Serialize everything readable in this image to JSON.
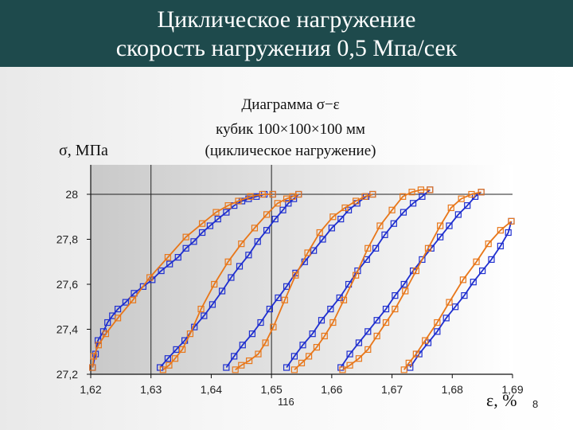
{
  "slide": {
    "title_line_1": "Циклическое нагружение",
    "title_line_2": "скорость нагружения  0,5 Мпа/сек",
    "colors": {
      "title_bar": "#1e4a4c",
      "title_text": "#ffffff"
    },
    "note": "116",
    "page_number": "8"
  },
  "chart_data": {
    "type": "line",
    "title_lines": [
      "Диаграмма σ−ε",
      "кубик 100×100×100 мм",
      "(циклическое нагружение)"
    ],
    "ylabel": "σ, МПа",
    "xlabel": "ε, %",
    "xlim": [
      1.62,
      1.69
    ],
    "ylim": [
      27.2,
      28.0
    ],
    "x_ticks": [
      "1,62",
      "1,63",
      "1,64",
      "1,65",
      "1,66",
      "1,67",
      "1,68",
      "1,69"
    ],
    "y_ticks": [
      "27,2",
      "27,4",
      "27,6",
      "27,8",
      "28"
    ],
    "grid": "reference lines at x=1,63 and x=1,65 and y=28",
    "legend": "none",
    "colors": {
      "loading": "#1f2fcf",
      "unloading": "#e8771a",
      "marker": "square-open"
    },
    "series": [
      {
        "color": "#1f2fcf",
        "points": [
          [
            1.6203,
            27.23
          ],
          [
            1.6208,
            27.29
          ],
          [
            1.6212,
            27.35
          ],
          [
            1.6221,
            27.39
          ],
          [
            1.6228,
            27.43
          ],
          [
            1.6236,
            27.46
          ],
          [
            1.6245,
            27.49
          ],
          [
            1.6258,
            27.52
          ],
          [
            1.6272,
            27.56
          ],
          [
            1.6287,
            27.59
          ],
          [
            1.6302,
            27.62
          ],
          [
            1.6317,
            27.66
          ],
          [
            1.6331,
            27.69
          ],
          [
            1.6345,
            27.72
          ],
          [
            1.6358,
            27.76
          ],
          [
            1.6371,
            27.79
          ],
          [
            1.6385,
            27.83
          ],
          [
            1.6398,
            27.86
          ],
          [
            1.6411,
            27.89
          ],
          [
            1.6425,
            27.92
          ],
          [
            1.6438,
            27.95
          ],
          [
            1.6451,
            27.97
          ],
          [
            1.6462,
            27.98
          ],
          [
            1.6475,
            27.99
          ],
          [
            1.6488,
            28.0
          ],
          [
            1.6502,
            28.0
          ]
        ]
      },
      {
        "color": "#e8771a",
        "points": [
          [
            1.6502,
            28.0
          ],
          [
            1.6485,
            28.0
          ],
          [
            1.6465,
            27.99
          ],
          [
            1.6445,
            27.97
          ],
          [
            1.6428,
            27.95
          ],
          [
            1.6408,
            27.92
          ],
          [
            1.6385,
            27.87
          ],
          [
            1.6358,
            27.81
          ],
          [
            1.6328,
            27.72
          ],
          [
            1.6298,
            27.63
          ],
          [
            1.627,
            27.53
          ],
          [
            1.6245,
            27.45
          ],
          [
            1.6225,
            27.38
          ],
          [
            1.6213,
            27.33
          ],
          [
            1.6205,
            27.28
          ],
          [
            1.6203,
            27.23
          ]
        ]
      },
      {
        "color": "#1f2fcf",
        "points": [
          [
            1.6315,
            27.23
          ],
          [
            1.6328,
            27.27
          ],
          [
            1.6342,
            27.31
          ],
          [
            1.6356,
            27.35
          ],
          [
            1.6372,
            27.41
          ],
          [
            1.6388,
            27.46
          ],
          [
            1.6402,
            27.51
          ],
          [
            1.6418,
            27.57
          ],
          [
            1.6433,
            27.63
          ],
          [
            1.6447,
            27.68
          ],
          [
            1.6462,
            27.73
          ],
          [
            1.6477,
            27.79
          ],
          [
            1.6492,
            27.84
          ],
          [
            1.6506,
            27.89
          ],
          [
            1.6519,
            27.93
          ],
          [
            1.6528,
            27.96
          ],
          [
            1.6537,
            27.98
          ],
          [
            1.6545,
            28.0
          ]
        ]
      },
      {
        "color": "#e8771a",
        "points": [
          [
            1.6545,
            28.0
          ],
          [
            1.6535,
            27.99
          ],
          [
            1.6525,
            27.98
          ],
          [
            1.651,
            27.96
          ],
          [
            1.6492,
            27.91
          ],
          [
            1.6472,
            27.85
          ],
          [
            1.645,
            27.78
          ],
          [
            1.6428,
            27.7
          ],
          [
            1.6405,
            27.6
          ],
          [
            1.6383,
            27.49
          ],
          [
            1.6365,
            27.38
          ],
          [
            1.6352,
            27.31
          ],
          [
            1.634,
            27.27
          ],
          [
            1.633,
            27.24
          ],
          [
            1.632,
            27.22
          ]
        ]
      },
      {
        "color": "#1f2fcf",
        "points": [
          [
            1.6425,
            27.23
          ],
          [
            1.6438,
            27.28
          ],
          [
            1.6452,
            27.33
          ],
          [
            1.6468,
            27.38
          ],
          [
            1.6482,
            27.43
          ],
          [
            1.6497,
            27.49
          ],
          [
            1.6511,
            27.54
          ],
          [
            1.6525,
            27.59
          ],
          [
            1.654,
            27.65
          ],
          [
            1.6555,
            27.7
          ],
          [
            1.657,
            27.75
          ],
          [
            1.6585,
            27.8
          ],
          [
            1.66,
            27.85
          ],
          [
            1.6615,
            27.89
          ],
          [
            1.6628,
            27.93
          ],
          [
            1.6642,
            27.96
          ],
          [
            1.6657,
            27.99
          ],
          [
            1.6668,
            28.0
          ]
        ]
      },
      {
        "color": "#e8771a",
        "points": [
          [
            1.6668,
            28.0
          ],
          [
            1.6655,
            27.99
          ],
          [
            1.664,
            27.97
          ],
          [
            1.6622,
            27.94
          ],
          [
            1.6602,
            27.9
          ],
          [
            1.658,
            27.83
          ],
          [
            1.656,
            27.74
          ],
          [
            1.654,
            27.64
          ],
          [
            1.6522,
            27.53
          ],
          [
            1.6503,
            27.41
          ],
          [
            1.649,
            27.34
          ],
          [
            1.6478,
            27.29
          ],
          [
            1.6463,
            27.26
          ],
          [
            1.645,
            27.24
          ],
          [
            1.644,
            27.22
          ]
        ]
      },
      {
        "color": "#1f2fcf",
        "points": [
          [
            1.6525,
            27.23
          ],
          [
            1.6538,
            27.28
          ],
          [
            1.6552,
            27.33
          ],
          [
            1.6568,
            27.38
          ],
          [
            1.6583,
            27.44
          ],
          [
            1.6598,
            27.49
          ],
          [
            1.6613,
            27.54
          ],
          [
            1.6628,
            27.6
          ],
          [
            1.6643,
            27.66
          ],
          [
            1.6658,
            27.71
          ],
          [
            1.6673,
            27.76
          ],
          [
            1.6688,
            27.82
          ],
          [
            1.6703,
            27.87
          ],
          [
            1.6719,
            27.92
          ],
          [
            1.6735,
            27.96
          ],
          [
            1.675,
            27.99
          ],
          [
            1.6763,
            28.02
          ]
        ]
      },
      {
        "color": "#e8771a",
        "points": [
          [
            1.6763,
            28.02
          ],
          [
            1.6748,
            28.02
          ],
          [
            1.6733,
            28.01
          ],
          [
            1.6718,
            27.99
          ],
          [
            1.67,
            27.93
          ],
          [
            1.668,
            27.86
          ],
          [
            1.666,
            27.76
          ],
          [
            1.664,
            27.64
          ],
          [
            1.662,
            27.53
          ],
          [
            1.6602,
            27.43
          ],
          [
            1.6588,
            27.37
          ],
          [
            1.6575,
            27.32
          ],
          [
            1.6562,
            27.28
          ],
          [
            1.655,
            27.25
          ],
          [
            1.6538,
            27.22
          ]
        ]
      },
      {
        "color": "#1f2fcf",
        "points": [
          [
            1.6615,
            27.23
          ],
          [
            1.663,
            27.29
          ],
          [
            1.6645,
            27.34
          ],
          [
            1.666,
            27.39
          ],
          [
            1.6675,
            27.44
          ],
          [
            1.669,
            27.49
          ],
          [
            1.6705,
            27.55
          ],
          [
            1.672,
            27.6
          ],
          [
            1.6735,
            27.66
          ],
          [
            1.675,
            27.71
          ],
          [
            1.6765,
            27.76
          ],
          [
            1.678,
            27.81
          ],
          [
            1.6795,
            27.86
          ],
          [
            1.681,
            27.91
          ],
          [
            1.6825,
            27.95
          ],
          [
            1.6838,
            27.99
          ],
          [
            1.6848,
            28.01
          ]
        ]
      },
      {
        "color": "#e8771a",
        "points": [
          [
            1.6848,
            28.01
          ],
          [
            1.6832,
            28.0
          ],
          [
            1.6815,
            27.98
          ],
          [
            1.6798,
            27.94
          ],
          [
            1.678,
            27.86
          ],
          [
            1.676,
            27.76
          ],
          [
            1.674,
            27.66
          ],
          [
            1.6722,
            27.57
          ],
          [
            1.6705,
            27.49
          ],
          [
            1.669,
            27.43
          ],
          [
            1.6675,
            27.37
          ],
          [
            1.666,
            27.31
          ],
          [
            1.6645,
            27.27
          ],
          [
            1.663,
            27.24
          ],
          [
            1.6618,
            27.22
          ]
        ]
      },
      {
        "color": "#1f2fcf",
        "points": [
          [
            1.673,
            27.23
          ],
          [
            1.6745,
            27.29
          ],
          [
            1.676,
            27.34
          ],
          [
            1.6775,
            27.39
          ],
          [
            1.679,
            27.45
          ],
          [
            1.6805,
            27.5
          ],
          [
            1.682,
            27.55
          ],
          [
            1.6835,
            27.61
          ],
          [
            1.685,
            27.66
          ],
          [
            1.6865,
            27.71
          ],
          [
            1.688,
            27.77
          ],
          [
            1.6893,
            27.83
          ],
          [
            1.6898,
            27.88
          ]
        ]
      },
      {
        "color": "#e8771a",
        "points": [
          [
            1.6898,
            27.88
          ],
          [
            1.688,
            27.84
          ],
          [
            1.686,
            27.78
          ],
          [
            1.684,
            27.7
          ],
          [
            1.6818,
            27.62
          ],
          [
            1.6795,
            27.52
          ],
          [
            1.6775,
            27.43
          ],
          [
            1.6755,
            27.35
          ],
          [
            1.674,
            27.29
          ],
          [
            1.6728,
            27.25
          ],
          [
            1.672,
            27.22
          ]
        ]
      }
    ]
  }
}
